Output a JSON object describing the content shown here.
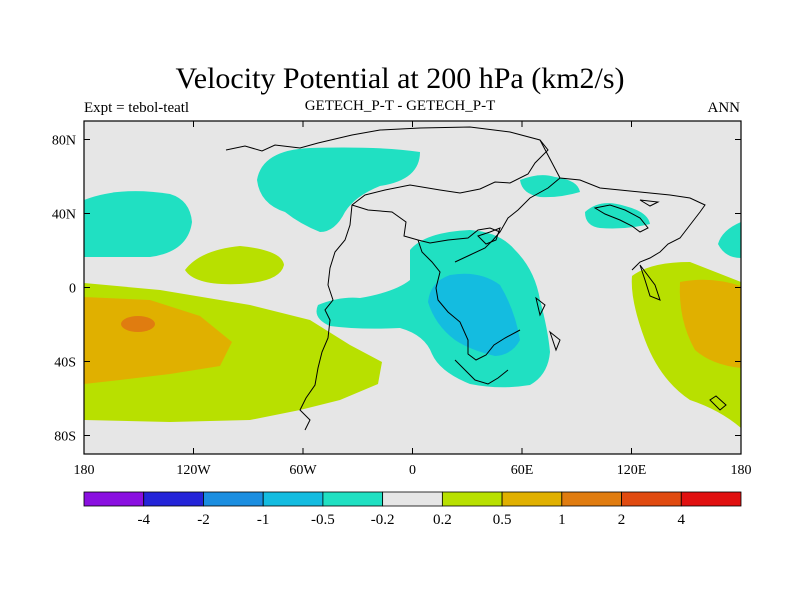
{
  "chart_data": {
    "type": "contour-map",
    "title": "Velocity Potential at 200 hPa (km2/s)",
    "subtitle_left": "Expt = tebol-teatl",
    "subtitle_center": "GETECH_P-T - GETECH_P-T",
    "subtitle_right": "ANN",
    "x_ticks": [
      "180",
      "120W",
      "60W",
      "0",
      "60E",
      "120E",
      "180"
    ],
    "y_ticks": [
      "80N",
      "40N",
      "0",
      "40S",
      "80S"
    ],
    "xlim": [
      -180,
      180
    ],
    "ylim": [
      -90,
      90
    ],
    "contour_levels": [
      -4,
      -2,
      -1,
      -0.5,
      -0.2,
      0.2,
      0.5,
      1,
      2,
      4
    ],
    "colorbar_labels": [
      "-4",
      "-2",
      "-1",
      "-0.5",
      "-0.2",
      "0.2",
      "0.5",
      "1",
      "2",
      "4"
    ],
    "colorbar_colors": [
      "#8a10e0",
      "#2424d8",
      "#1b8ee0",
      "#14bce0",
      "#20e0c2",
      "#e6e6e6",
      "#b8e000",
      "#e0b000",
      "#e07c10",
      "#e04a10",
      "#e01010"
    ],
    "background_color": "#e6e6e6"
  }
}
